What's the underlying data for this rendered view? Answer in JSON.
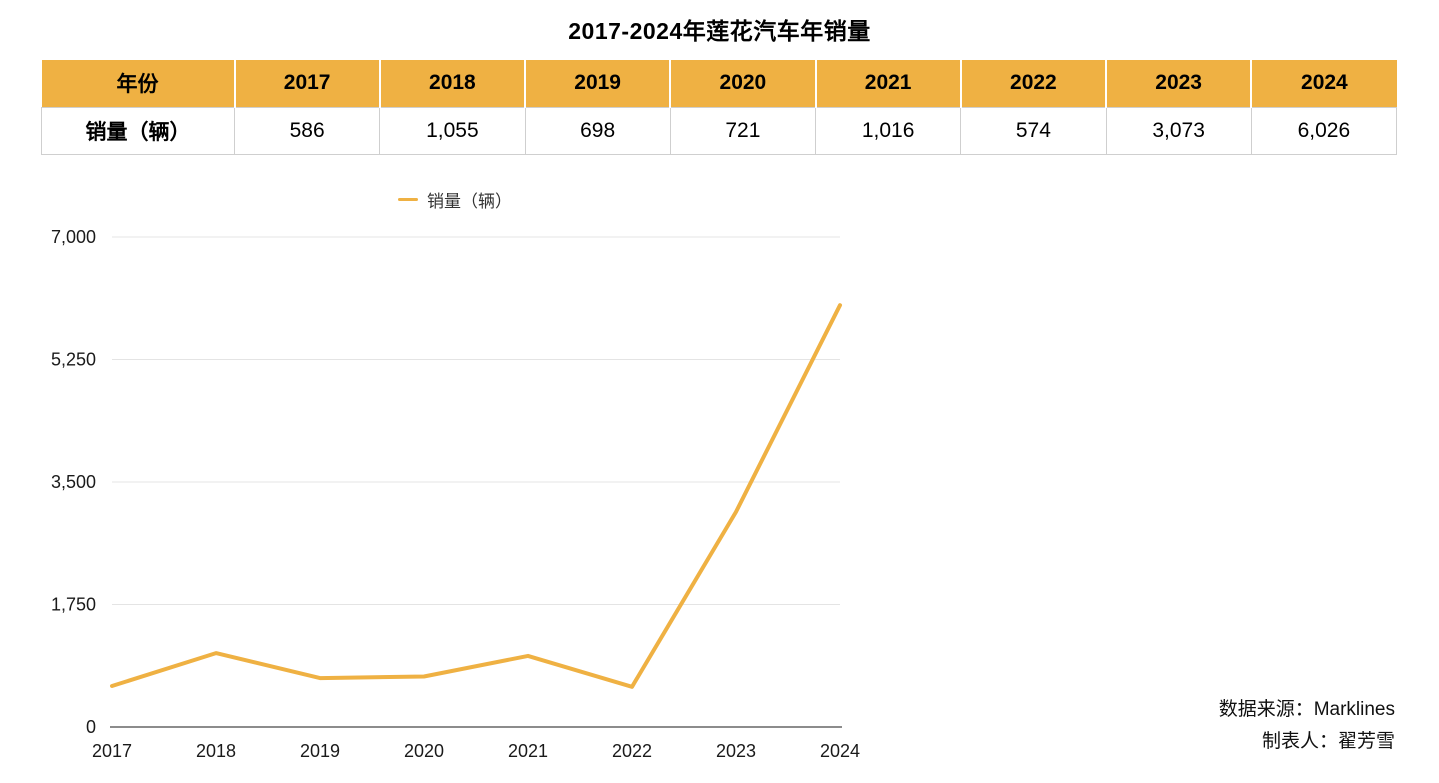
{
  "title": "2017-2024年莲花汽车年销量",
  "table": {
    "header_label": "年份",
    "row_label": "销量（辆）",
    "years": [
      "2017",
      "2018",
      "2019",
      "2020",
      "2021",
      "2022",
      "2023",
      "2024"
    ],
    "values": [
      "586",
      "1,055",
      "698",
      "721",
      "1,016",
      "574",
      "3,073",
      "6,026"
    ]
  },
  "chart_data": {
    "type": "line",
    "categories": [
      "2017",
      "2018",
      "2019",
      "2020",
      "2021",
      "2022",
      "2023",
      "2024"
    ],
    "series": [
      {
        "name": "销量（辆）",
        "values": [
          586,
          1055,
          698,
          721,
          1016,
          574,
          3073,
          6026
        ]
      }
    ],
    "title": "",
    "xlabel": "",
    "ylabel": "",
    "ylim": [
      0,
      7000
    ],
    "yticks": [
      0,
      1750,
      3500,
      5250,
      7000
    ],
    "grid": true,
    "legend_position": "top",
    "line_color": "#EFB143",
    "grid_color": "#E4E4E4",
    "axis_color": "#8C8C8C"
  },
  "footer": {
    "source": "数据来源：Marklines",
    "author": "制表人：翟芳雪"
  },
  "colors": {
    "accent": "#EFB143",
    "table_border": "#CFCFCF"
  }
}
